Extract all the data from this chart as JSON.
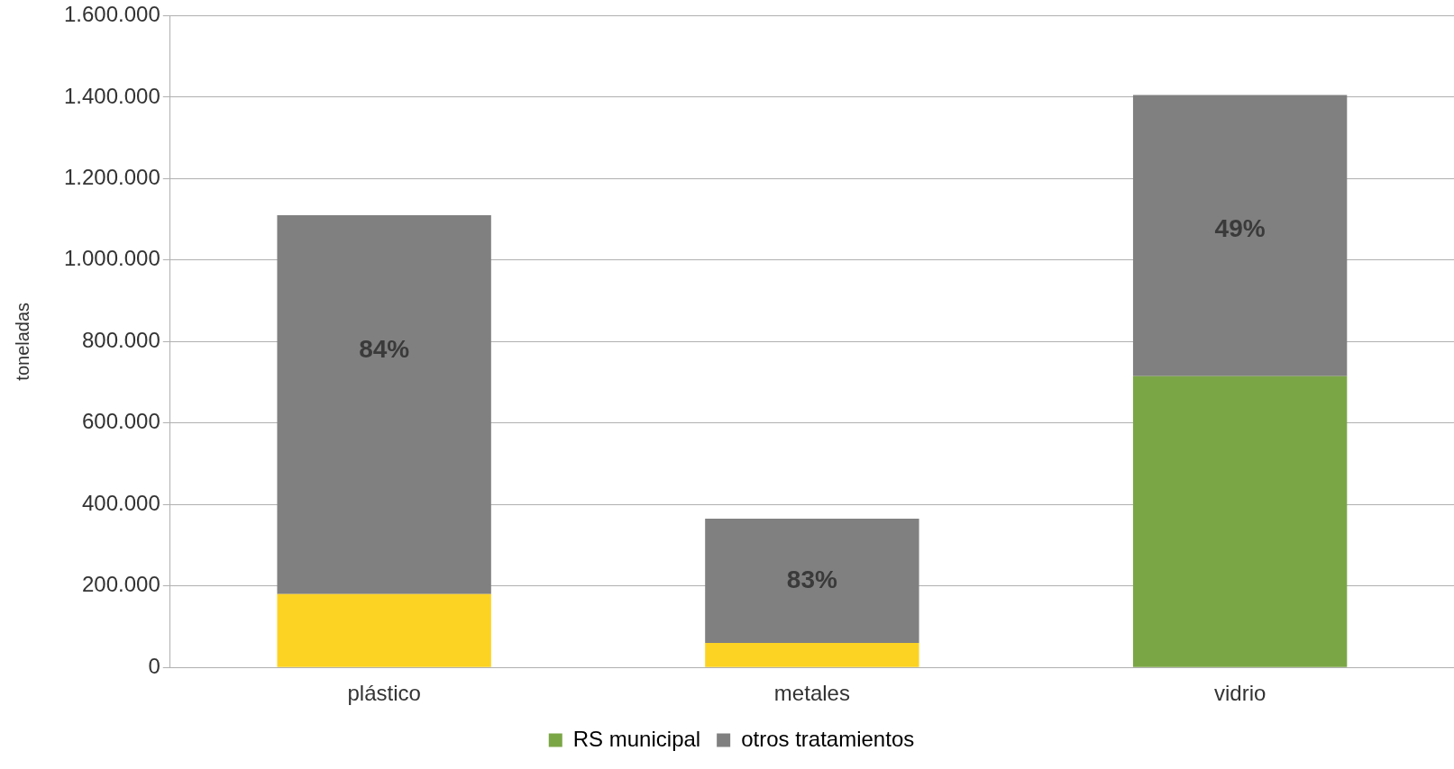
{
  "chart_data": {
    "type": "bar",
    "stacked": true,
    "ylabel": "toneladas",
    "categories": [
      "plástico",
      "metales",
      "vidrio"
    ],
    "series": [
      {
        "name": "RS municipal",
        "color": "#7ba646",
        "colors": [
          "#fdd323",
          "#fdd323",
          "#7ba646"
        ],
        "values": [
          180000,
          60000,
          715000
        ]
      },
      {
        "name": "otros tratamientos",
        "color": "#808080",
        "values": [
          930000,
          305000,
          690000
        ]
      }
    ],
    "annotations": [
      "84%",
      "83%",
      "49%"
    ],
    "ylim": [
      0,
      1600000
    ],
    "yticks": [
      0,
      {
        "value": 200000,
        "label": "200.000"
      },
      {
        "value": 400000,
        "label": "400.000"
      },
      {
        "value": 600000,
        "label": "600.000"
      },
      {
        "value": 800000,
        "label": "800.000"
      },
      {
        "value": 1000000,
        "label": "1.000.000"
      },
      {
        "value": 1200000,
        "label": "1.200.000"
      },
      {
        "value": 1400000,
        "label": "1.400.000"
      },
      {
        "value": 1600000,
        "label": "1.600.000"
      }
    ],
    "grid": "y",
    "legend": "bottom"
  }
}
